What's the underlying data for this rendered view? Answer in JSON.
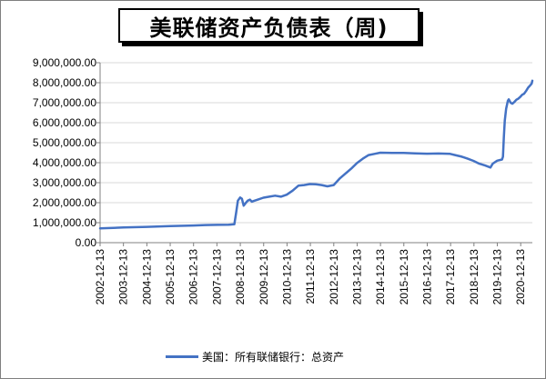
{
  "chart_data": {
    "type": "line",
    "title": "美联储资产负债表（周)",
    "y_tick_labels": [
      "0.00",
      "1,000,000.00",
      "2,000,000.00",
      "3,000,000.00",
      "4,000,000.00",
      "5,000,000.00",
      "6,000,000.00",
      "7,000,000.00",
      "8,000,000.00",
      "9,000,000.00"
    ],
    "y_ticks": [
      0,
      1000000,
      2000000,
      3000000,
      4000000,
      5000000,
      6000000,
      7000000,
      8000000,
      9000000
    ],
    "ylim": [
      0,
      9000000
    ],
    "x_tick_labels": [
      "2002-12-13",
      "2003-12-13",
      "2004-12-13",
      "2005-12-13",
      "2006-12-13",
      "2007-12-13",
      "2008-12-13",
      "2009-12-13",
      "2010-12-13",
      "2011-12-13",
      "2012-12-13",
      "2013-12-13",
      "2014-12-13",
      "2015-12-13",
      "2016-12-13",
      "2017-12-13",
      "2018-12-13",
      "2019-12-13",
      "2020-12-13"
    ],
    "xlim": [
      "2002-12-13",
      "2021-06-13"
    ],
    "legend_position": "bottom",
    "grid": "horizontal",
    "series": [
      {
        "name": "美国：所有联储银行：总资产",
        "color": "#4472c4",
        "points": [
          [
            "2002-12-13",
            720000
          ],
          [
            "2003-12-13",
            760000
          ],
          [
            "2004-12-13",
            790000
          ],
          [
            "2005-12-13",
            830000
          ],
          [
            "2006-12-13",
            860000
          ],
          [
            "2007-06-13",
            880000
          ],
          [
            "2007-12-13",
            890000
          ],
          [
            "2008-06-13",
            900000
          ],
          [
            "2008-09-10",
            920000
          ],
          [
            "2008-10-08",
            1500000
          ],
          [
            "2008-11-05",
            2100000
          ],
          [
            "2008-12-10",
            2260000
          ],
          [
            "2009-01-07",
            2200000
          ],
          [
            "2009-02-04",
            1850000
          ],
          [
            "2009-03-11",
            2000000
          ],
          [
            "2009-04-08",
            2100000
          ],
          [
            "2009-05-13",
            2150000
          ],
          [
            "2009-06-10",
            2050000
          ],
          [
            "2009-07-08",
            2080000
          ],
          [
            "2009-09-09",
            2150000
          ],
          [
            "2009-12-09",
            2250000
          ],
          [
            "2010-03-10",
            2300000
          ],
          [
            "2010-06-09",
            2350000
          ],
          [
            "2010-09-08",
            2300000
          ],
          [
            "2010-12-08",
            2400000
          ],
          [
            "2011-03-09",
            2600000
          ],
          [
            "2011-06-08",
            2850000
          ],
          [
            "2011-09-07",
            2880000
          ],
          [
            "2011-12-07",
            2930000
          ],
          [
            "2012-03-07",
            2920000
          ],
          [
            "2012-06-06",
            2880000
          ],
          [
            "2012-09-05",
            2820000
          ],
          [
            "2012-12-12",
            2880000
          ],
          [
            "2013-03-13",
            3200000
          ],
          [
            "2013-06-12",
            3450000
          ],
          [
            "2013-09-11",
            3700000
          ],
          [
            "2013-12-11",
            3980000
          ],
          [
            "2014-03-12",
            4200000
          ],
          [
            "2014-06-11",
            4380000
          ],
          [
            "2014-09-10",
            4440000
          ],
          [
            "2014-12-10",
            4500000
          ],
          [
            "2015-06-10",
            4490000
          ],
          [
            "2015-12-09",
            4490000
          ],
          [
            "2016-06-08",
            4470000
          ],
          [
            "2016-12-07",
            4450000
          ],
          [
            "2017-06-07",
            4460000
          ],
          [
            "2017-12-06",
            4440000
          ],
          [
            "2018-03-07",
            4370000
          ],
          [
            "2018-06-06",
            4300000
          ],
          [
            "2018-09-05",
            4200000
          ],
          [
            "2018-12-05",
            4090000
          ],
          [
            "2019-03-06",
            3950000
          ],
          [
            "2019-06-05",
            3860000
          ],
          [
            "2019-08-28",
            3760000
          ],
          [
            "2019-10-02",
            3950000
          ],
          [
            "2019-12-11",
            4100000
          ],
          [
            "2020-02-26",
            4160000
          ],
          [
            "2020-03-11",
            4300000
          ],
          [
            "2020-03-25",
            5300000
          ],
          [
            "2020-04-08",
            6100000
          ],
          [
            "2020-04-29",
            6700000
          ],
          [
            "2020-05-27",
            7100000
          ],
          [
            "2020-06-10",
            7170000
          ],
          [
            "2020-07-08",
            7000000
          ],
          [
            "2020-08-05",
            6950000
          ],
          [
            "2020-09-09",
            7050000
          ],
          [
            "2020-10-07",
            7150000
          ],
          [
            "2020-11-04",
            7200000
          ],
          [
            "2020-12-09",
            7300000
          ],
          [
            "2021-01-06",
            7400000
          ],
          [
            "2021-02-03",
            7450000
          ],
          [
            "2021-03-10",
            7600000
          ],
          [
            "2021-04-07",
            7750000
          ],
          [
            "2021-05-05",
            7850000
          ],
          [
            "2021-06-02",
            7950000
          ],
          [
            "2021-06-13",
            8100000
          ]
        ]
      }
    ]
  }
}
